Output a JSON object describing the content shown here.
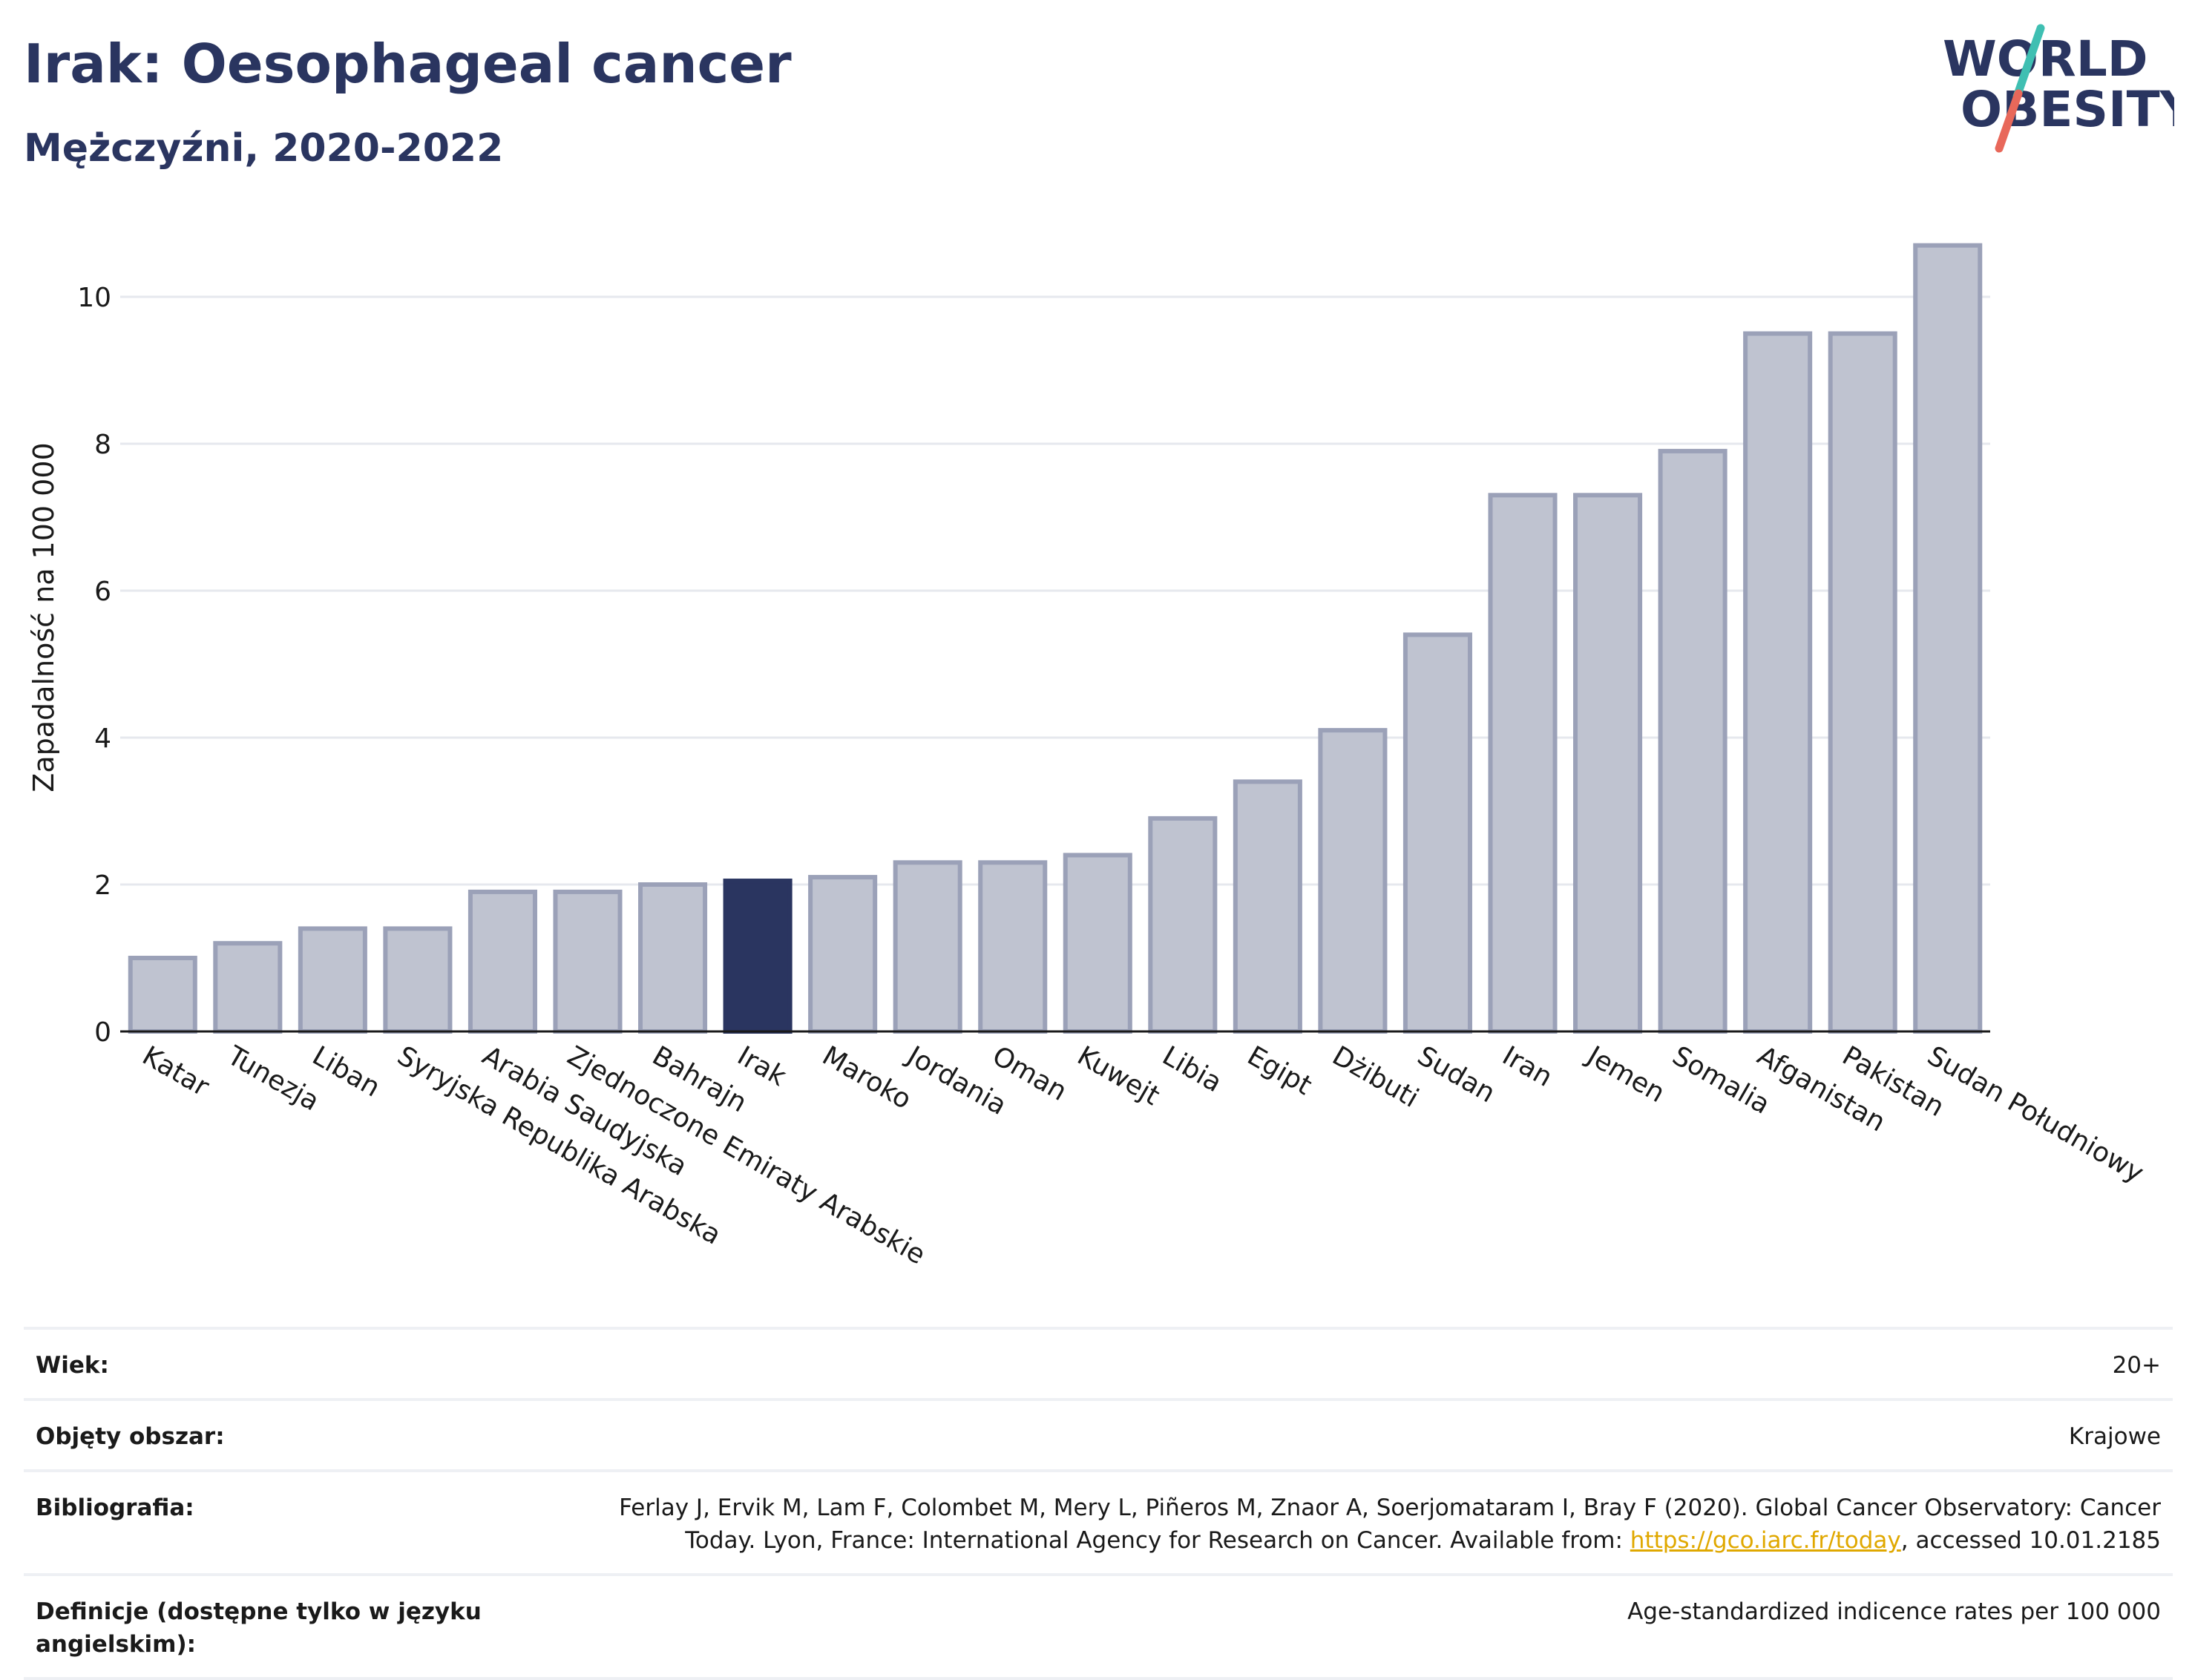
{
  "header": {
    "title": "Irak: Oesophageal cancer",
    "subtitle": "Mężczyźni, 2020-2022"
  },
  "logo": {
    "line1": "WORLD",
    "line2": "OBESITY",
    "colors": {
      "text": "#2a3560",
      "slash_top": "#3fbfb2",
      "slash_bottom": "#e8685a"
    }
  },
  "colors": {
    "bar": "#bfc3d0",
    "bar_stroke": "#9ba1b8",
    "highlight": "#2a3560",
    "grid": "#e6e8ee"
  },
  "chart_data": {
    "type": "bar",
    "ylabel": "Zapadalność na 100 000",
    "ylim": [
      0,
      11
    ],
    "yticks": [
      0,
      2,
      4,
      6,
      8,
      10
    ],
    "grid": true,
    "highlight": "Irak",
    "categories": [
      "Katar",
      "Tunezja",
      "Liban",
      "Syryjska Republika Arabska",
      "Arabia Saudyjska",
      "Zjednoczone Emiraty Arabskie",
      "Bahrajn",
      "Irak",
      "Maroko",
      "Jordania",
      "Oman",
      "Kuwejt",
      "Libia",
      "Egipt",
      "Dżibuti",
      "Sudan",
      "Iran",
      "Jemen",
      "Somalia",
      "Afganistan",
      "Pakistan",
      "Sudan Południowy"
    ],
    "values": [
      1.0,
      1.2,
      1.4,
      1.4,
      1.9,
      1.9,
      2.0,
      2.05,
      2.1,
      2.3,
      2.3,
      2.4,
      2.9,
      3.4,
      4.1,
      5.4,
      7.3,
      7.3,
      7.9,
      9.5,
      9.5,
      10.7
    ]
  },
  "meta": {
    "age_label": "Wiek:",
    "age_value": "20+",
    "area_label": "Objęty obszar:",
    "area_value": "Krajowe",
    "bib_label": "Bibliografia:",
    "bib_text1": "Ferlay J, Ervik M, Lam F, Colombet M, Mery L, Piñeros M, Znaor A, Soerjomataram I, Bray F (2020). Global Cancer Observatory: Cancer Today. Lyon, France: International Agency for Research on Cancer. Available from: ",
    "bib_link": "https://gco.iarc.fr/today",
    "bib_text2": ", accessed 10.01.2185",
    "def_label": "Definicje (dostępne tylko w języku angielskim):",
    "def_value": "Age-standardized indicence rates per 100 000"
  }
}
